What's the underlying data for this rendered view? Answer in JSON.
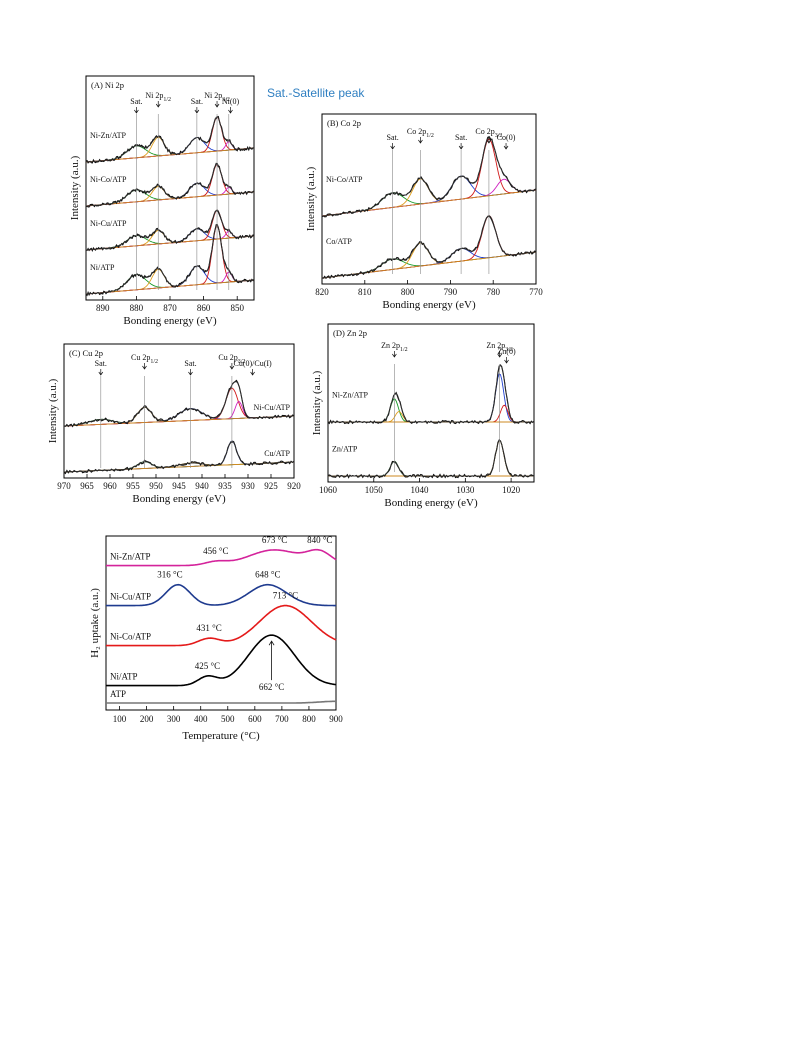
{
  "note": "Sat.-Satellite peak",
  "chart_data": [
    {
      "id": "A",
      "type": "line",
      "panel_label": "(A) Ni 2p",
      "xlabel": "Bonding energy (eV)",
      "ylabel": "Intensity (a.u.)",
      "xlim": [
        895,
        845
      ],
      "xticks": [
        "890",
        "880",
        "870",
        "860",
        "850"
      ],
      "xtick_values": [
        890,
        880,
        870,
        860,
        850
      ],
      "peak_labels": [
        {
          "text": "Sat.",
          "x": 880
        },
        {
          "text": "Ni 2p",
          "sub": "1/2",
          "x": 873.5
        },
        {
          "text": "Sat.",
          "x": 862
        },
        {
          "text": "Ni 2p",
          "sub": "3/2",
          "x": 856
        },
        {
          "text": "Ni(0)",
          "x": 852
        }
      ],
      "guide_lines": [
        880,
        873.5,
        862,
        856,
        852.5
      ],
      "series": [
        {
          "name": "Ni-Zn/ATP",
          "peaks": [
            [
              880,
              0.35,
              2.8
            ],
            [
              873.5,
              0.55,
              1.8
            ],
            [
              862,
              0.45,
              2.2
            ],
            [
              856,
              1.0,
              1.4
            ],
            [
              852.5,
              0.25,
              0.9
            ]
          ]
        },
        {
          "name": "Ni-Co/ATP",
          "peaks": [
            [
              880,
              0.35,
              2.8
            ],
            [
              873.5,
              0.4,
              1.8
            ],
            [
              862,
              0.4,
              2.2
            ],
            [
              856,
              0.9,
              1.4
            ],
            [
              852.5,
              0.2,
              0.9
            ]
          ]
        },
        {
          "name": "Ni-Cu/ATP",
          "peaks": [
            [
              880,
              0.3,
              2.8
            ],
            [
              873.5,
              0.4,
              1.8
            ],
            [
              862,
              0.35,
              2.2
            ],
            [
              856,
              0.85,
              1.4
            ],
            [
              852.5,
              0.2,
              0.9
            ]
          ]
        },
        {
          "name": "Ni/ATP",
          "peaks": [
            [
              880,
              0.45,
              2.8
            ],
            [
              873.5,
              0.55,
              1.8
            ],
            [
              862,
              0.55,
              2.2
            ],
            [
              856,
              1.7,
              1.4
            ],
            [
              852.5,
              0.3,
              0.9
            ]
          ]
        }
      ]
    },
    {
      "id": "B",
      "type": "line",
      "panel_label": "(B) Co 2p",
      "xlabel": "Bonding energy (eV)",
      "ylabel": "Intensity (a.u.)",
      "xlim": [
        820,
        770
      ],
      "xticks": [
        "820",
        "810",
        "800",
        "790",
        "780",
        "770"
      ],
      "xtick_values": [
        820,
        810,
        800,
        790,
        780,
        770
      ],
      "peak_labels": [
        {
          "text": "Sat.",
          "x": 803.5
        },
        {
          "text": "Co 2p",
          "sub": "1/2",
          "x": 797
        },
        {
          "text": "Sat.",
          "x": 787.5
        },
        {
          "text": "Co 2p",
          "sub": "3/2",
          "x": 781
        },
        {
          "text": "Co(0)",
          "x": 777
        }
      ],
      "guide_lines": [
        803.5,
        797,
        787.5,
        781
      ],
      "series": [
        {
          "name": "Ni-Co/ATP",
          "peaks": [
            [
              803.5,
              0.35,
              2.5
            ],
            [
              797,
              0.6,
              1.8
            ],
            [
              787.5,
              0.55,
              2.2
            ],
            [
              781,
              1.35,
              1.6
            ],
            [
              777.5,
              0.35,
              1.6
            ]
          ]
        },
        {
          "name": "Co/ATP",
          "peaks": [
            [
              803.5,
              0.25,
              2.5
            ],
            [
              797,
              0.55,
              1.8
            ],
            [
              787.5,
              0.3,
              2.2
            ],
            [
              781,
              1.0,
              1.6
            ]
          ]
        }
      ]
    },
    {
      "id": "C",
      "type": "line",
      "panel_label": "(C) Cu 2p",
      "xlabel": "Bonding energy (eV)",
      "ylabel": "Intensity (a.u.)",
      "xlim": [
        970,
        920
      ],
      "xticks": [
        "970",
        "965",
        "960",
        "955",
        "950",
        "945",
        "940",
        "935",
        "930",
        "925",
        "920"
      ],
      "xtick_values": [
        970,
        965,
        960,
        955,
        950,
        945,
        940,
        935,
        930,
        925,
        920
      ],
      "peak_labels": [
        {
          "text": "Sat.",
          "x": 962
        },
        {
          "text": "Cu 2p",
          "sub": "1/2",
          "x": 952.5
        },
        {
          "text": "Sat.",
          "x": 942.5
        },
        {
          "text": "Cu 2p",
          "sub": "3/2",
          "x": 933.5
        },
        {
          "text": "Cu(0)/Cu(I)",
          "x": 929
        }
      ],
      "guide_lines": [
        962,
        952.5,
        942.5,
        933.5
      ],
      "series": [
        {
          "name": "Ni-Cu/ATP",
          "peaks": [
            [
              962,
              0.15,
              2.5
            ],
            [
              952.5,
              0.45,
              1.5
            ],
            [
              942.5,
              0.35,
              2.5
            ],
            [
              933.5,
              0.9,
              1.3
            ],
            [
              932,
              0.5,
              0.8
            ]
          ]
        },
        {
          "name": "Cu/ATP",
          "peaks": [
            [
              952.5,
              0.2,
              1.5
            ],
            [
              942.5,
              0.1,
              2.5
            ],
            [
              933.5,
              0.7,
              1.0
            ]
          ]
        }
      ]
    },
    {
      "id": "D",
      "type": "line",
      "panel_label": "(D) Zn 2p",
      "xlabel": "Bonding energy (eV)",
      "ylabel": "Intensity (a.u.)",
      "xlim": [
        1060,
        1015
      ],
      "xticks": [
        "1060",
        "1050",
        "1040",
        "1030",
        "1020"
      ],
      "xtick_values": [
        1060,
        1050,
        1040,
        1030,
        1020
      ],
      "peak_labels": [
        {
          "text": "Zn 2p",
          "sub": "1/2",
          "x": 1045.5
        },
        {
          "text": "Zn 2p",
          "sub": "3/2",
          "x": 1022.5
        },
        {
          "text": "Zn(0)",
          "x": 1021
        }
      ],
      "guide_lines": [
        1045.5,
        1022.5
      ],
      "series": [
        {
          "name": "Ni-Zn/ATP",
          "peaks": [
            [
              1045.5,
              0.55,
              0.9
            ],
            [
              1044.5,
              0.25,
              0.8
            ],
            [
              1022.5,
              1.15,
              0.9
            ],
            [
              1021.5,
              0.4,
              0.8
            ]
          ]
        },
        {
          "name": "Zn/ATP",
          "peaks": [
            [
              1045.5,
              0.35,
              0.9
            ],
            [
              1022.5,
              0.85,
              0.9
            ]
          ]
        }
      ]
    },
    {
      "id": "TPR",
      "type": "line",
      "xlabel": "Temperature (°C)",
      "ylabel": "H₂ uptake (a.u.)",
      "xlim": [
        50,
        900
      ],
      "xticks": [
        "100",
        "200",
        "300",
        "400",
        "500",
        "600",
        "700",
        "800",
        "900"
      ],
      "xtick_values": [
        100,
        200,
        300,
        400,
        500,
        600,
        700,
        800,
        900
      ],
      "series": [
        {
          "name": "Ni-Zn/ATP",
          "color": "#d4239b",
          "baseline": 0.83,
          "peaks": [
            [
              456,
              0.02,
              40
            ],
            [
              673,
              0.09,
              95
            ],
            [
              840,
              0.07,
              45
            ]
          ]
        },
        {
          "name": "Ni-Cu/ATP",
          "color": "#1f3b8f",
          "baseline": 0.6,
          "peaks": [
            [
              316,
              0.12,
              45
            ],
            [
              648,
              0.12,
              70
            ]
          ]
        },
        {
          "name": "Ni-Co/ATP",
          "color": "#e41a1a",
          "baseline": 0.37,
          "peaks": [
            [
              431,
              0.04,
              40
            ],
            [
              713,
              0.23,
              95
            ]
          ]
        },
        {
          "name": "Ni/ATP",
          "color": "#000000",
          "baseline": 0.14,
          "peaks": [
            [
              425,
              0.05,
              35
            ],
            [
              662,
              0.29,
              85
            ]
          ]
        },
        {
          "name": "ATP",
          "color": "#777777",
          "baseline": 0.04,
          "peaks": [
            [
              900,
              0.01,
              60
            ]
          ]
        }
      ],
      "annotations": [
        {
          "text": "456 °C",
          "series": 0,
          "x": 456
        },
        {
          "text": "673 °C",
          "series": 0,
          "x": 673
        },
        {
          "text": "840 °C",
          "series": 0,
          "x": 840
        },
        {
          "text": "316 °C",
          "series": 1,
          "x": 316
        },
        {
          "text": "648 °C",
          "series": 1,
          "x": 648
        },
        {
          "text": "431 °C",
          "series": 2,
          "x": 431
        },
        {
          "text": "713 °C",
          "series": 2,
          "x": 713
        },
        {
          "text": "425 °C",
          "series": 3,
          "x": 425
        },
        {
          "text": "662 °C",
          "series": 3,
          "x": 662
        }
      ]
    }
  ]
}
